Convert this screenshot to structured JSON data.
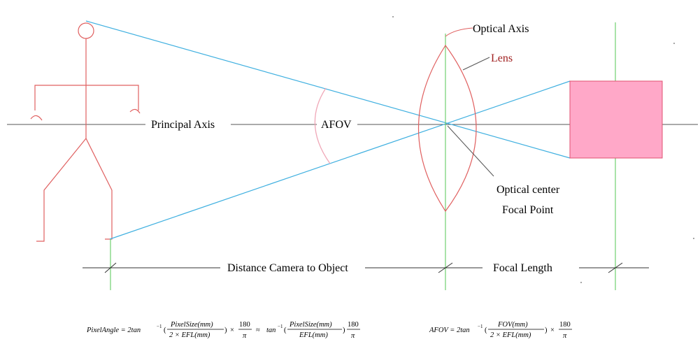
{
  "labels": {
    "optical_axis": "Optical Axis",
    "lens": "Lens",
    "principal_axis": "Principal Axis",
    "afov": "AFOV",
    "optical_center": "Optical center",
    "focal_point": "Focal Point",
    "distance": "Distance Camera to Object",
    "focal_length": "Focal Length"
  },
  "formula_pixel_angle": {
    "lhs": "PixelAngle = 2tan",
    "inv": "−1",
    "num1": "PixelSize(mm)",
    "den1": "2 × EFL(mm)",
    "times": "×",
    "c180a": "180",
    "pi_a": "π",
    "approx": "≈",
    "tan2": "tan",
    "num2": "PixelSize(mm)",
    "den2": "EFL(mm)",
    "c180b": "180",
    "pi_b": "π"
  },
  "formula_afov": {
    "lhs": "AFOV = 2tan",
    "inv": "−1",
    "num": "FOV(mm)",
    "den": "2 × EFL(mm)",
    "times": "×",
    "c180": "180",
    "pi": "π"
  },
  "colors": {
    "figure": "#e06060",
    "ray": "#40b0e0",
    "axis_green": "#70d070",
    "lens": "#e06060",
    "sensor_fill": "#ffa8c8",
    "sensor_stroke": "#e05070",
    "afov_arc": "#f0a8b8"
  }
}
